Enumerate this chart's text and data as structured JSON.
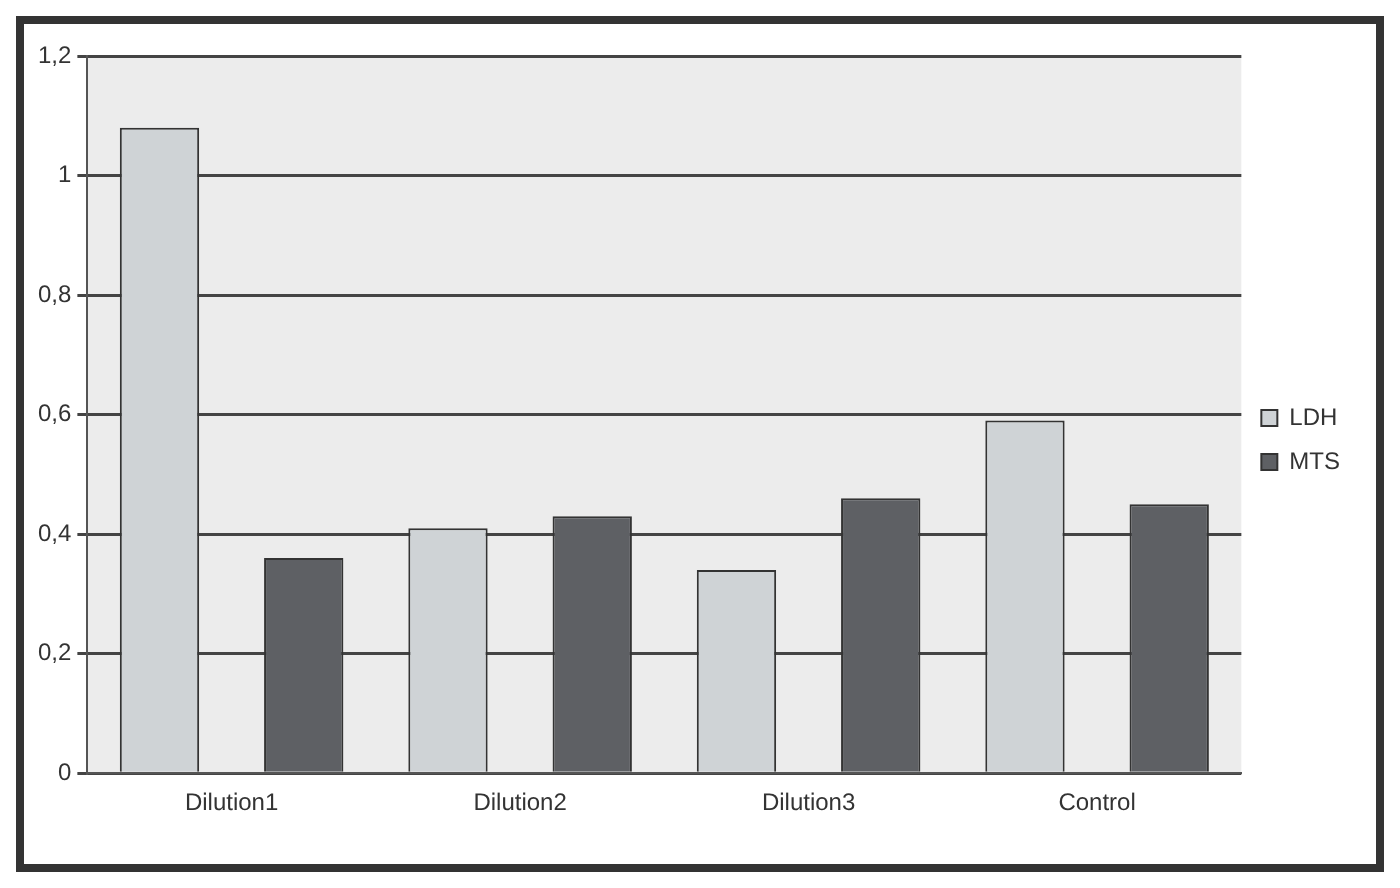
{
  "chart_data": {
    "type": "bar",
    "categories": [
      "Dilution1",
      "Dilution2",
      "Dilution3",
      "Control"
    ],
    "series": [
      {
        "name": "LDH",
        "color": "#cfd3d6",
        "values": [
          1.08,
          0.41,
          0.34,
          0.59
        ]
      },
      {
        "name": "MTS",
        "color": "#5e6064",
        "values": [
          0.36,
          0.43,
          0.46,
          0.45
        ]
      }
    ],
    "ylim": [
      0,
      1.2
    ],
    "yticks": [
      0,
      {
        "value": 0.2,
        "label": "0,2"
      },
      {
        "value": 0.4,
        "label": "0,4"
      },
      {
        "value": 0.6,
        "label": "0,6"
      },
      {
        "value": 0.8,
        "label": "0,8"
      },
      1,
      {
        "value": 1.2,
        "label": "1,2"
      }
    ],
    "grid": "y",
    "legend": "right"
  }
}
